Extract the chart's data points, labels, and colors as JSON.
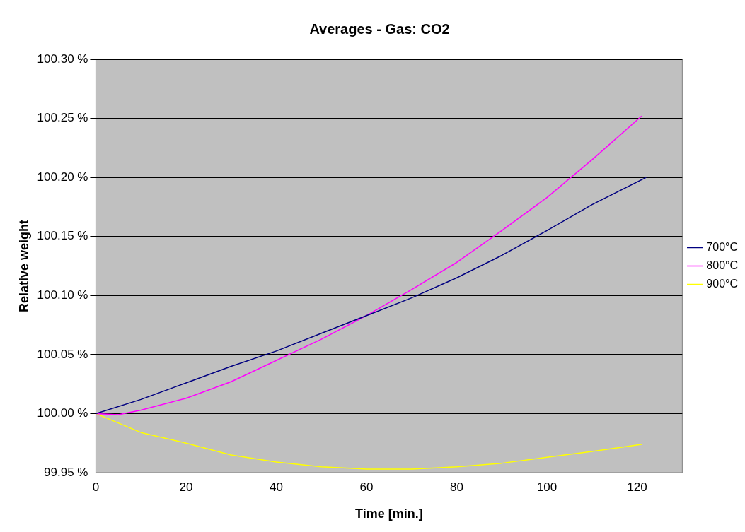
{
  "chart_data": {
    "type": "line",
    "title": "Averages - Gas: CO2",
    "xlabel": "Time [min.]",
    "ylabel": "Relative weight",
    "xlim": [
      0,
      130
    ],
    "xticks": [
      0,
      20,
      40,
      60,
      80,
      100,
      120
    ],
    "ylim": [
      99.95,
      100.3
    ],
    "yticks": [
      {
        "value": 99.95,
        "label": "99.95 %"
      },
      {
        "value": 100,
        "label": "100.00 %"
      },
      {
        "value": 100.05,
        "label": "100.05 %"
      },
      {
        "value": 100.1,
        "label": "100.10 %"
      },
      {
        "value": 100.15,
        "label": "100.15 %"
      },
      {
        "value": 100.2,
        "label": "100.20 %"
      },
      {
        "value": 100.25,
        "label": "100.25 %"
      },
      {
        "value": 100.3,
        "label": "100.30 %"
      }
    ],
    "grid": "y",
    "legend": "right",
    "series": [
      {
        "name": "700°C",
        "color": "#000080",
        "x": [
          0,
          10,
          20,
          30,
          40,
          50,
          60,
          70,
          80,
          90,
          100,
          110,
          122
        ],
        "values": [
          100,
          100.012,
          100.026,
          100.04,
          100.053,
          100.068,
          100.083,
          100.098,
          100.115,
          100.134,
          100.155,
          100.177,
          100.2
        ]
      },
      {
        "name": "800°C",
        "color": "#ff00ff",
        "x": [
          0,
          5,
          10,
          20,
          30,
          40,
          50,
          60,
          70,
          80,
          90,
          100,
          110,
          121
        ],
        "values": [
          100,
          99.999,
          100.003,
          100.013,
          100.027,
          100.045,
          100.063,
          100.083,
          100.105,
          100.128,
          100.155,
          100.183,
          100.215,
          100.252
        ]
      },
      {
        "name": "900°C",
        "color": "#ffff00",
        "x": [
          0,
          10,
          20,
          30,
          40,
          50,
          60,
          70,
          80,
          90,
          100,
          110,
          121
        ],
        "values": [
          100,
          99.984,
          99.975,
          99.965,
          99.959,
          99.955,
          99.953,
          99.953,
          99.955,
          99.958,
          99.963,
          99.968,
          99.974
        ]
      }
    ]
  }
}
